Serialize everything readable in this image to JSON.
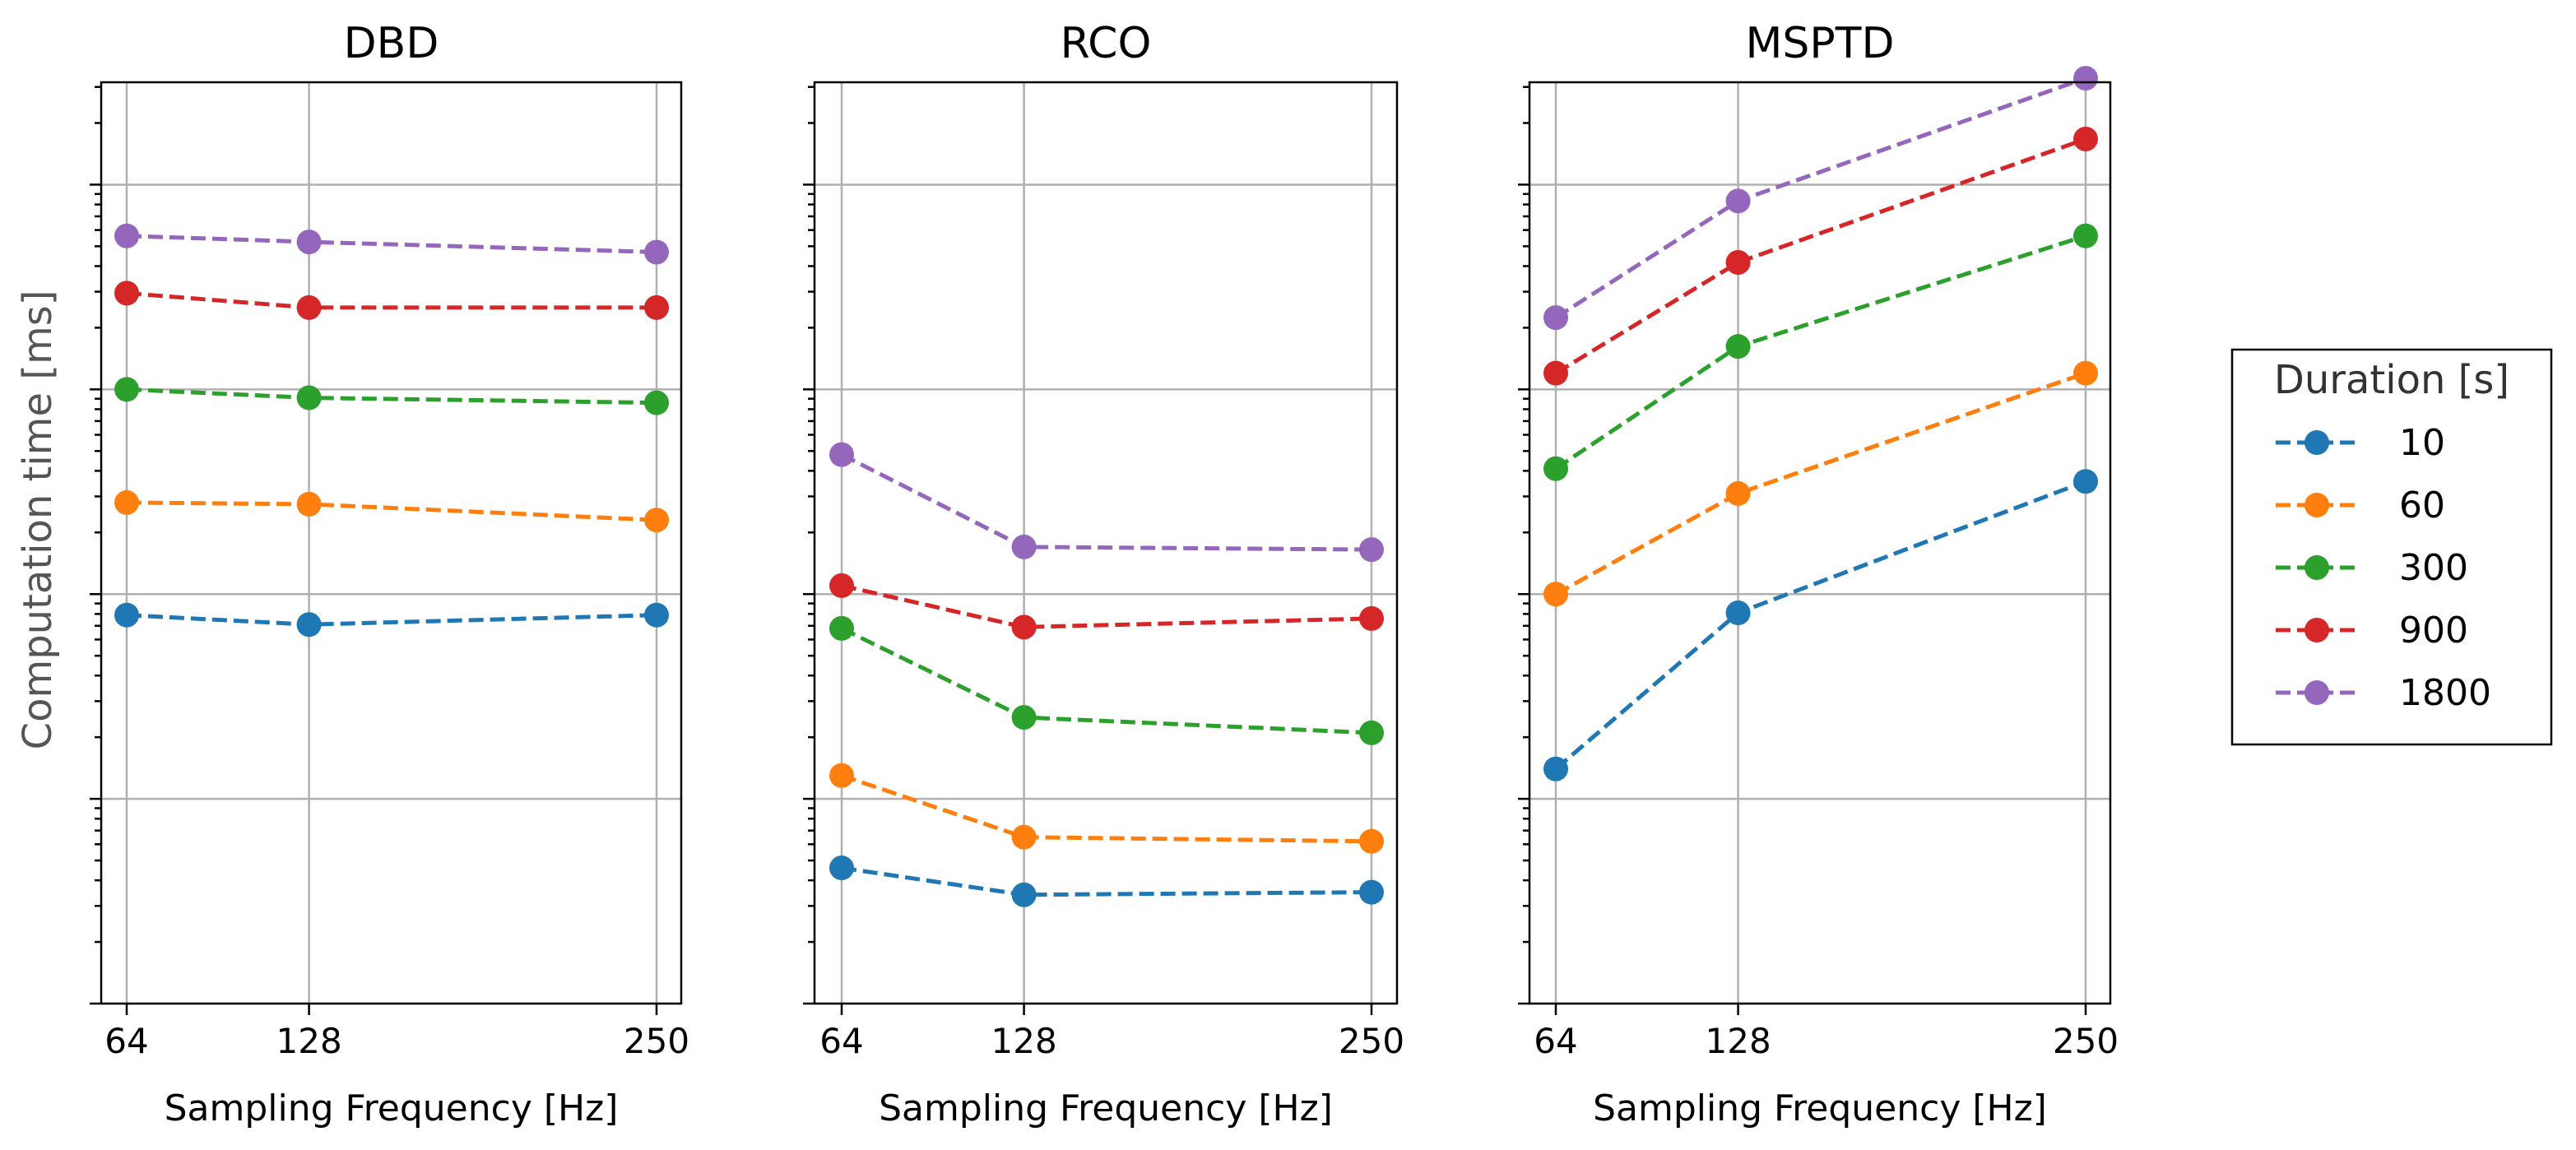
{
  "chart_data": {
    "type": "line",
    "y_scale": "log",
    "ylabel": "Computation time [ms]",
    "shared_y": true,
    "ylim_log10": [
      -2.0,
      2.5
    ],
    "grid": true,
    "legend": {
      "title": "Duration [s]",
      "placement": "right",
      "entries": [
        "10",
        "60",
        "300",
        "900",
        "1800"
      ]
    },
    "series_colors": {
      "10": "#1f77b4",
      "60": "#ff7f0e",
      "300": "#2ca02c",
      "900": "#d62728",
      "1800": "#9467bd"
    },
    "x_values": [
      64,
      128,
      250
    ],
    "x_tick_labels": [
      "64",
      "128",
      "250"
    ],
    "xlabel": "Sampling Frequency [Hz]",
    "panels": [
      {
        "title": "DBD",
        "series": [
          {
            "name": "10",
            "values_ms": [
              0.79,
              0.71,
              0.79
            ]
          },
          {
            "name": "60",
            "values_ms": [
              2.8,
              2.75,
              2.3
            ]
          },
          {
            "name": "300",
            "values_ms": [
              10.0,
              9.1,
              8.6
            ]
          },
          {
            "name": "900",
            "values_ms": [
              29.5,
              25.1,
              25.1
            ]
          },
          {
            "name": "1800",
            "values_ms": [
              56.2,
              52.5,
              46.8
            ]
          }
        ]
      },
      {
        "title": "RCO",
        "series": [
          {
            "name": "10",
            "values_ms": [
              0.046,
              0.034,
              0.035
            ]
          },
          {
            "name": "60",
            "values_ms": [
              0.13,
              0.065,
              0.062
            ]
          },
          {
            "name": "300",
            "values_ms": [
              0.68,
              0.25,
              0.21
            ]
          },
          {
            "name": "900",
            "values_ms": [
              1.1,
              0.69,
              0.76
            ]
          },
          {
            "name": "1800",
            "values_ms": [
              4.8,
              1.7,
              1.65
            ]
          }
        ]
      },
      {
        "title": "MSPTD",
        "series": [
          {
            "name": "10",
            "values_ms": [
              0.14,
              0.81,
              3.55
            ]
          },
          {
            "name": "60",
            "values_ms": [
              1.0,
              3.1,
              12.0
            ]
          },
          {
            "name": "300",
            "values_ms": [
              4.1,
              16.2,
              56.2
            ]
          },
          {
            "name": "900",
            "values_ms": [
              12.0,
              41.7,
              167
            ]
          },
          {
            "name": "1800",
            "values_ms": [
              22.4,
              83.2,
              331
            ]
          }
        ]
      }
    ]
  }
}
